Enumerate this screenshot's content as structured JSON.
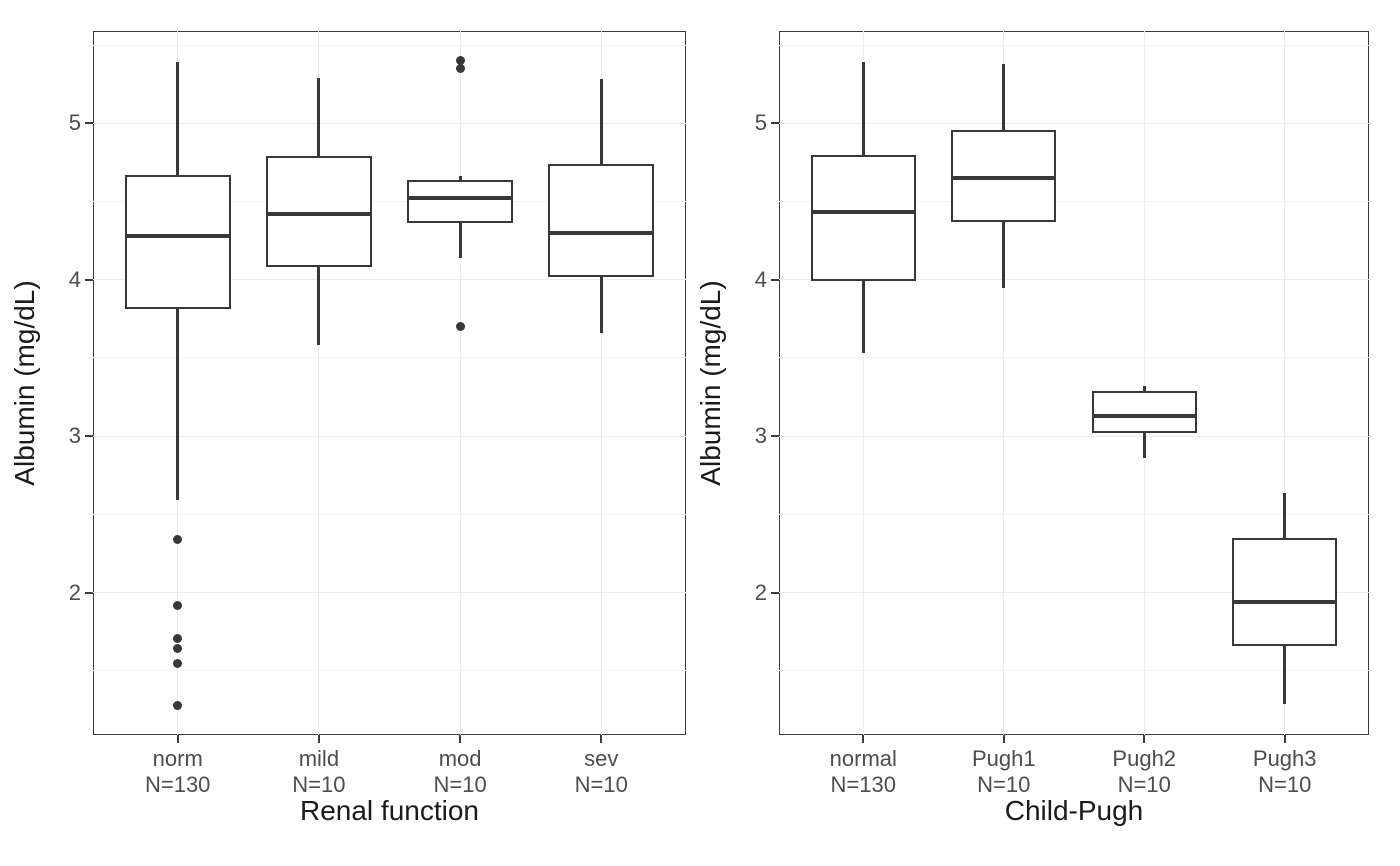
{
  "style": {
    "background": "#ffffff",
    "panel_border": "#3c3c3c",
    "grid_major": "#ececec",
    "grid_minor": "#f4f4f4",
    "box_stroke": "#383838",
    "tick_text": "#4d4d4d",
    "title_text": "#1a1a1a"
  },
  "chart_data": [
    {
      "type": "boxplot",
      "xlabel": "Renal function",
      "ylabel": "Albumin (mg/dL)",
      "ylim": [
        1.09,
        5.59
      ],
      "yticks": [
        2,
        3,
        4,
        5
      ],
      "yticks_minor": [
        1.5,
        2.5,
        3.5,
        4.5,
        5.5
      ],
      "grid": true,
      "legend": "none",
      "groups": [
        {
          "label": "norm",
          "n": "N=130",
          "whisker_low": 2.59,
          "q1": 3.81,
          "median": 4.28,
          "q3": 4.67,
          "whisker_high": 5.39,
          "outliers": [
            2.34,
            1.92,
            1.71,
            1.64,
            1.55,
            1.28
          ]
        },
        {
          "label": "mild",
          "n": "N=10",
          "whisker_low": 3.58,
          "q1": 4.08,
          "median": 4.42,
          "q3": 4.79,
          "whisker_high": 5.29,
          "outliers": []
        },
        {
          "label": "mod",
          "n": "N=10",
          "whisker_low": 4.14,
          "q1": 4.36,
          "median": 4.52,
          "q3": 4.64,
          "whisker_high": 4.66,
          "outliers": [
            5.4,
            5.35,
            3.7
          ]
        },
        {
          "label": "sev",
          "n": "N=10",
          "whisker_low": 3.66,
          "q1": 4.02,
          "median": 4.3,
          "q3": 4.74,
          "whisker_high": 5.28,
          "outliers": []
        }
      ]
    },
    {
      "type": "boxplot",
      "xlabel": "Child-Pugh",
      "ylabel": "Albumin (mg/dL)",
      "ylim": [
        1.09,
        5.59
      ],
      "yticks": [
        2,
        3,
        4,
        5
      ],
      "yticks_minor": [
        1.5,
        2.5,
        3.5,
        4.5,
        5.5
      ],
      "grid": true,
      "legend": "none",
      "groups": [
        {
          "label": "normal",
          "n": "N=130",
          "whisker_low": 3.53,
          "q1": 3.99,
          "median": 4.43,
          "q3": 4.8,
          "whisker_high": 5.39,
          "outliers": []
        },
        {
          "label": "Pugh1",
          "n": "N=10",
          "whisker_low": 3.95,
          "q1": 4.37,
          "median": 4.65,
          "q3": 4.96,
          "whisker_high": 5.38,
          "outliers": []
        },
        {
          "label": "Pugh2",
          "n": "N=10",
          "whisker_low": 2.86,
          "q1": 3.02,
          "median": 3.13,
          "q3": 3.29,
          "whisker_high": 3.32,
          "outliers": []
        },
        {
          "label": "Pugh3",
          "n": "N=10",
          "whisker_low": 1.29,
          "q1": 1.66,
          "median": 1.94,
          "q3": 2.35,
          "whisker_high": 2.64,
          "outliers": []
        }
      ]
    }
  ]
}
